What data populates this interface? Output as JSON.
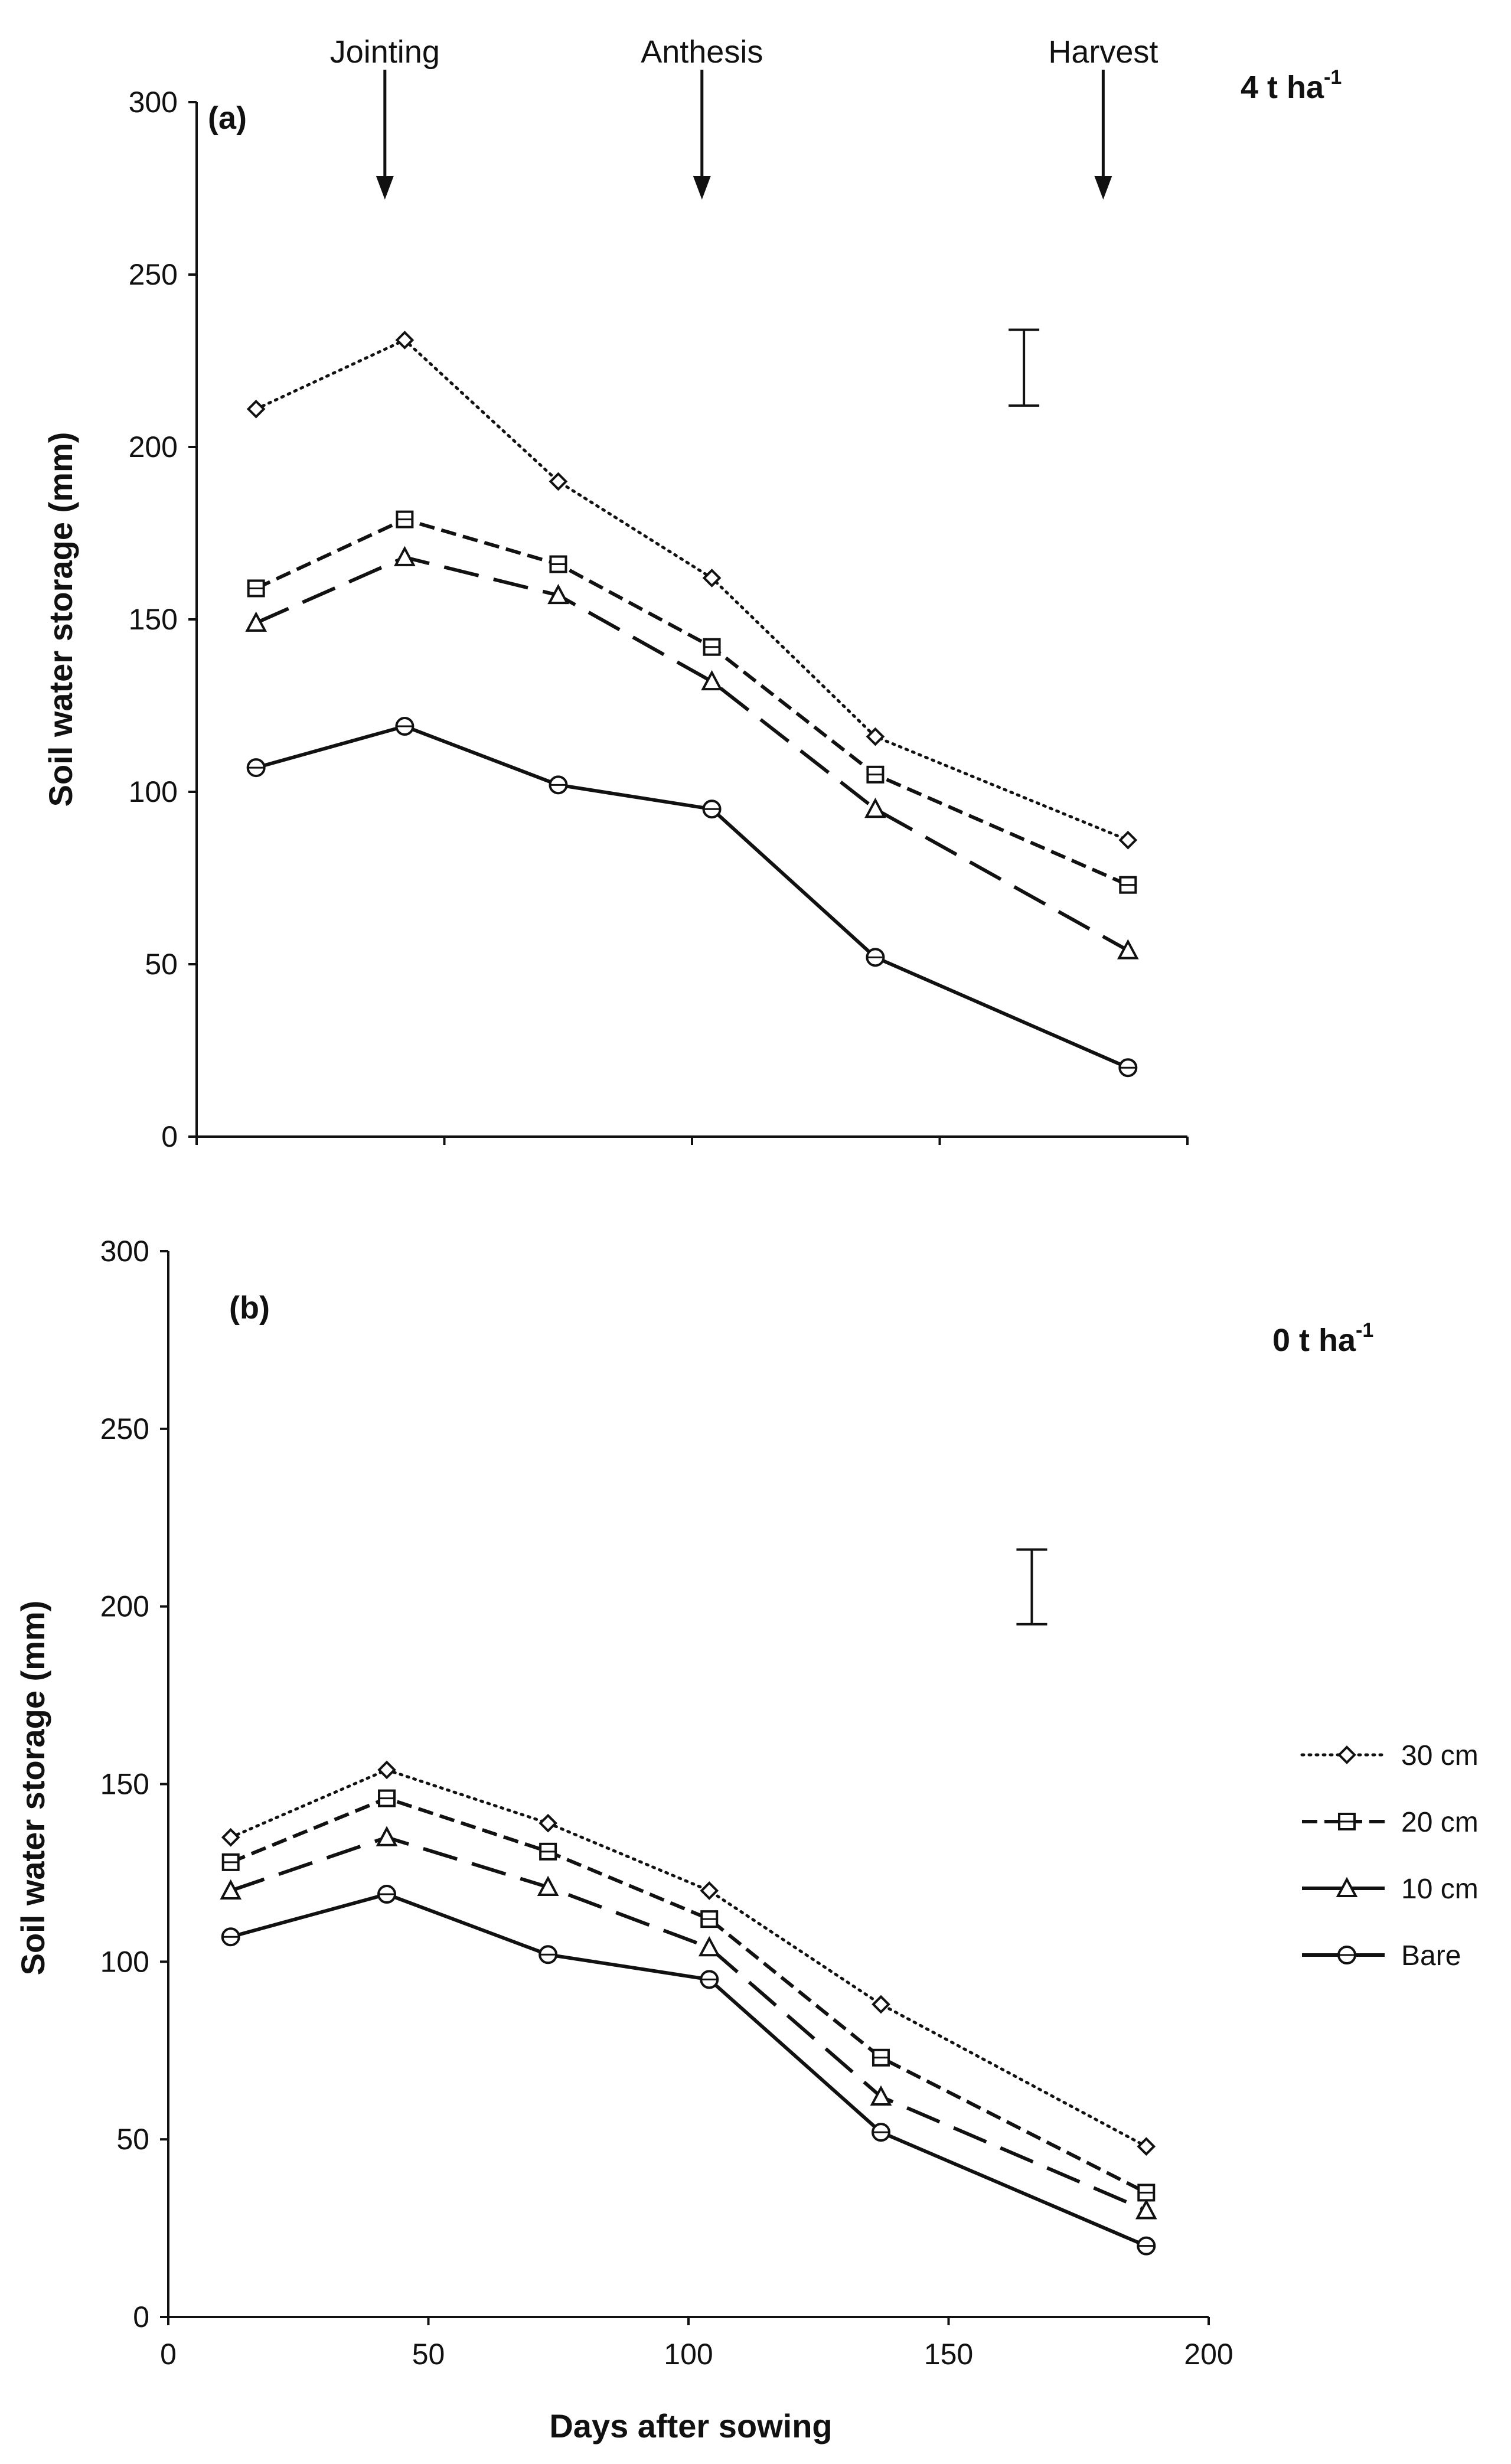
{
  "chart_data": [
    {
      "type": "line",
      "panel_label": "(a)",
      "treatment_label": "4 t ha",
      "treatment_sup": "-1",
      "xlabel": "",
      "ylabel": "Soil water storage (mm)",
      "xlim": [
        0,
        200
      ],
      "ylim": [
        0,
        300
      ],
      "yticks": [
        "0",
        "50",
        "100",
        "150",
        "200",
        "250",
        "300"
      ],
      "xticks": [],
      "stage_markers": [
        {
          "label": "Jointing",
          "x": 38
        },
        {
          "label": "Anthesis",
          "x": 102
        },
        {
          "label": "Harvest",
          "x": 183
        }
      ],
      "error_bar": {
        "x": 167,
        "low": 212,
        "high": 234
      },
      "series": [
        {
          "name": "30 cm",
          "style": "dotted",
          "marker": "diamond",
          "x": [
            12,
            42,
            73,
            104,
            137,
            188
          ],
          "values": [
            211,
            231,
            190,
            162,
            116,
            86
          ]
        },
        {
          "name": "20 cm",
          "style": "dashed",
          "marker": "square",
          "x": [
            12,
            42,
            73,
            104,
            137,
            188
          ],
          "values": [
            159,
            179,
            166,
            142,
            105,
            73
          ]
        },
        {
          "name": "10 cm",
          "style": "longdash",
          "marker": "triangle",
          "x": [
            12,
            42,
            73,
            104,
            137,
            188
          ],
          "values": [
            149,
            168,
            157,
            132,
            95,
            54
          ]
        },
        {
          "name": "Bare",
          "style": "solid",
          "marker": "circle",
          "x": [
            12,
            42,
            73,
            104,
            137,
            188
          ],
          "values": [
            107,
            119,
            102,
            95,
            52,
            20
          ]
        }
      ]
    },
    {
      "type": "line",
      "panel_label": "(b)",
      "treatment_label": "0 t ha",
      "treatment_sup": "-1",
      "xlabel": "Days after sowing",
      "ylabel": "Soil water storage (mm)",
      "xlim": [
        0,
        200
      ],
      "ylim": [
        0,
        300
      ],
      "yticks": [
        "0",
        "50",
        "100",
        "150",
        "200",
        "250",
        "300"
      ],
      "xticks": [
        "0",
        "50",
        "100",
        "150",
        "200"
      ],
      "error_bar": {
        "x": 166,
        "low": 195,
        "high": 216
      },
      "legend": {
        "position": "right",
        "entries": [
          "30 cm",
          "20 cm",
          "10 cm",
          "Bare"
        ]
      },
      "series": [
        {
          "name": "30 cm",
          "style": "dotted",
          "marker": "diamond",
          "x": [
            12,
            42,
            73,
            104,
            137,
            188
          ],
          "values": [
            135,
            154,
            139,
            120,
            88,
            48
          ]
        },
        {
          "name": "20 cm",
          "style": "dashed",
          "marker": "square",
          "x": [
            12,
            42,
            73,
            104,
            137,
            188
          ],
          "values": [
            128,
            146,
            131,
            112,
            73,
            35
          ]
        },
        {
          "name": "10 cm",
          "style": "longdash",
          "marker": "triangle",
          "x": [
            12,
            42,
            73,
            104,
            137,
            188
          ],
          "values": [
            120,
            135,
            121,
            104,
            62,
            30
          ]
        },
        {
          "name": "Bare",
          "style": "solid",
          "marker": "circle",
          "x": [
            12,
            42,
            73,
            104,
            137,
            188
          ],
          "values": [
            107,
            119,
            102,
            95,
            52,
            20
          ]
        }
      ]
    }
  ]
}
